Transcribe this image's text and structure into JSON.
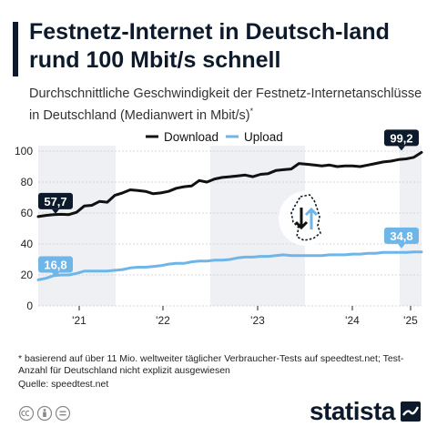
{
  "title": "Festnetz-Internet in Deutsch-land rund 100 Mbit/s schnell",
  "subtitle": "Durchschnittliche Geschwindigkeit der Festnetz-Internetanschlüsse in Deutschland (Medianwert in Mbit/s)",
  "subtitle_marker": "*",
  "footnote": "* basierend auf über 11 Mio. weltweiter täglicher Verbraucher-Tests auf speedtest.net; Test-Anzahl für Deutschland nicht explizit ausgewiesen",
  "source": "Quelle: speedtest.net",
  "brand": "statista",
  "chart_data": {
    "type": "line",
    "title": "Festnetz-Internet in Deutsch-land rund 100 Mbit/s schnell",
    "x_tick_labels": [
      "'21",
      "'22",
      "'23",
      "'24",
      "'25"
    ],
    "ylim": [
      0,
      100
    ],
    "y_ticks": [
      0,
      20,
      40,
      60,
      80,
      100
    ],
    "grid": true,
    "legend_position": "top-center",
    "series": [
      {
        "name": "Download",
        "color": "#111111",
        "start_label": "57,7",
        "end_label": "99,2",
        "values": [
          57.7,
          58.5,
          59.0,
          59.2,
          59.0,
          60.5,
          64.5,
          65.0,
          67.5,
          67.0,
          71.5,
          73.0,
          75.0,
          74.5,
          74.0,
          72.5,
          73.0,
          74.0,
          76.0,
          77.0,
          77.5,
          81.0,
          80.0,
          82.0,
          83.0,
          83.5,
          84.0,
          84.5,
          83.5,
          85.0,
          85.5,
          87.5,
          88.0,
          88.5,
          92.0,
          91.5,
          91.0,
          90.5,
          91.0,
          90.0,
          90.5,
          90.5,
          90.0,
          91.0,
          92.0,
          93.0,
          93.5,
          94.5,
          95.0,
          96.0,
          99.2
        ]
      },
      {
        "name": "Upload",
        "color": "#6fb6e8",
        "start_label": "16,8",
        "end_label": "34,8",
        "values": [
          16.8,
          17.8,
          19.5,
          20.0,
          20.0,
          21.0,
          22.5,
          22.5,
          22.5,
          22.5,
          23.0,
          23.5,
          24.5,
          25.0,
          25.0,
          25.5,
          26.0,
          27.0,
          27.5,
          27.5,
          28.5,
          29.0,
          29.0,
          29.5,
          29.5,
          30.0,
          31.0,
          31.5,
          31.5,
          32.0,
          32.0,
          32.5,
          33.0,
          32.5,
          32.5,
          32.5,
          32.5,
          32.5,
          33.0,
          33.0,
          33.0,
          33.5,
          33.5,
          34.0,
          34.0,
          34.5,
          34.5,
          34.5,
          34.5,
          34.8,
          34.8
        ]
      }
    ]
  }
}
